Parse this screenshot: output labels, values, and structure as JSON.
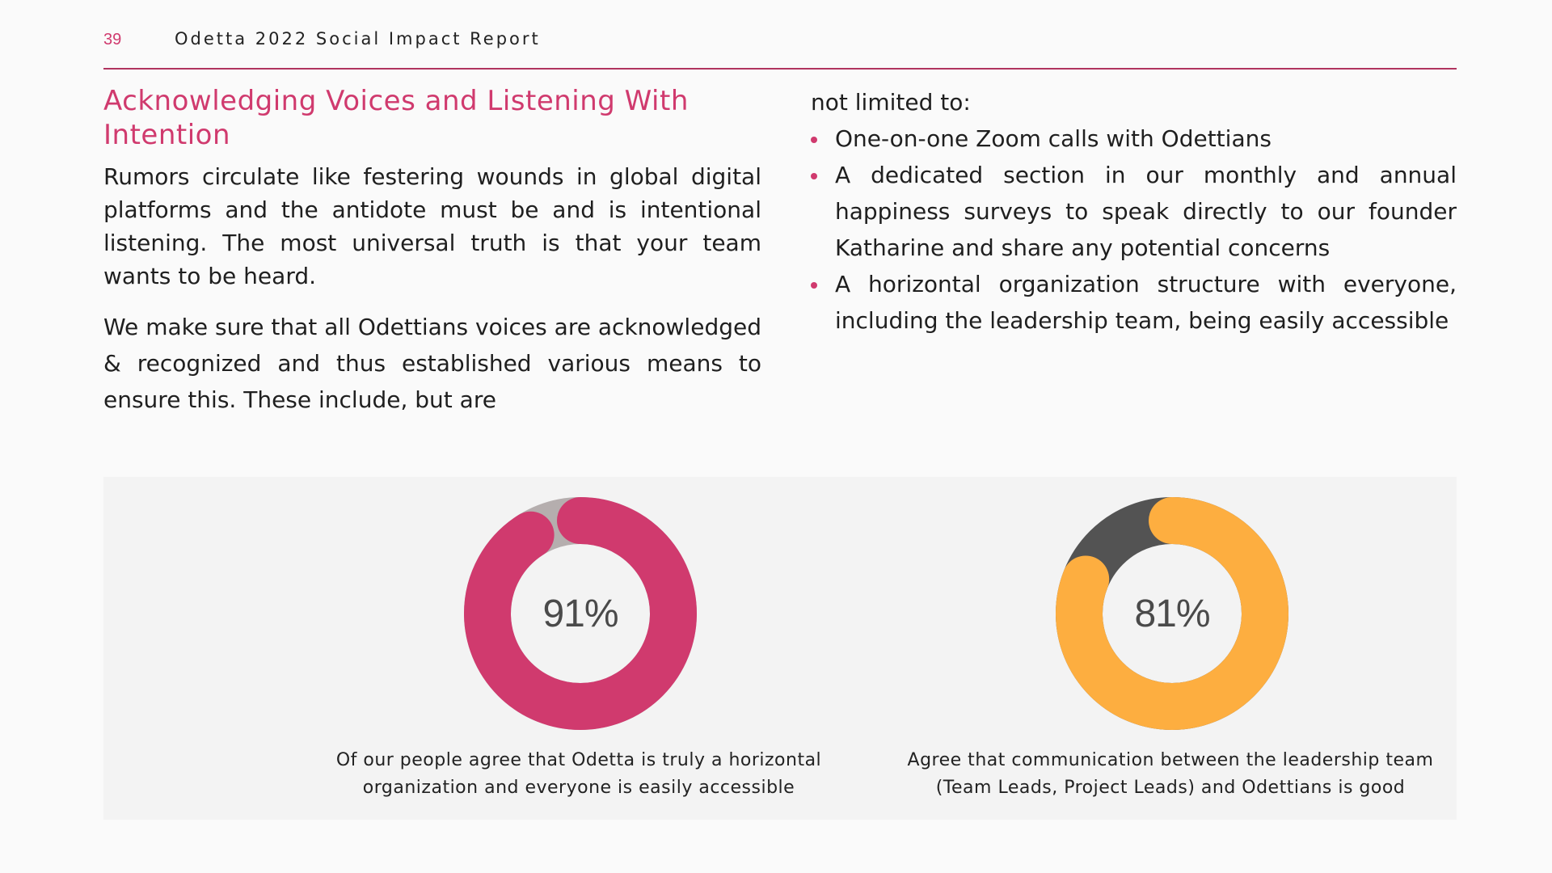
{
  "header": {
    "page_number": "39",
    "report_title": "Odetta 2022 Social Impact Report"
  },
  "left": {
    "title": "Acknowledging Voices and Listening With Intention",
    "para1": "Rumors circulate like festering wounds in global digital platforms and the antidote must be and is intentional listening. The most universal truth is that your team wants to be heard.",
    "para2": "We make sure that all Odettians voices are acknowledged & recognized and thus established various means to ensure this. These include, but are"
  },
  "right": {
    "continuation": "not limited to:",
    "bullets": [
      "One-on-one Zoom calls with Odettians",
      "A dedicated section in our monthly and annual happiness surveys to speak directly to our founder Katharine and share any potential concerns",
      "A horizontal organization structure with everyone, including the leadership team, being easily accessible"
    ]
  },
  "colors": {
    "accent": "#d03a6e",
    "rule": "#b0345f",
    "donut1_fill": "#d03a6e",
    "donut1_track": "#b5aeae",
    "donut2_fill": "#fdae40",
    "donut2_track": "#535353"
  },
  "stats": [
    {
      "value": "91%",
      "percent": 91,
      "caption": "Of our people agree that Odetta is truly a horizontal organization and everyone is easily accessible"
    },
    {
      "value": "81%",
      "percent": 81,
      "caption": "Agree that communication between the leadership team (Team Leads, Project Leads) and Odettians is good"
    }
  ]
}
